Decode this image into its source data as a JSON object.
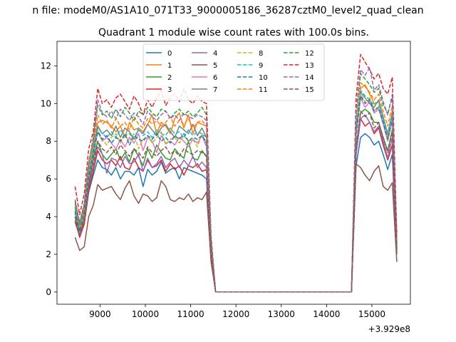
{
  "chart_data": {
    "type": "line",
    "suptitle": "n file: modeM0/AS1A10_071T33_9000005186_36287cztM0_level2_quad_clean",
    "title": "Quadrant 1 module wise count rates with 100.0s bins.",
    "xlabel": "",
    "ylabel": "",
    "x_offset_label": "+3.929e8",
    "xlim": [
      8050,
      15850
    ],
    "ylim": [
      -0.65,
      13.3
    ],
    "grid": false,
    "legend_position": "top-center",
    "xticks": [
      "9000",
      "10000",
      "11000",
      "12000",
      "13000",
      "14000",
      "15000"
    ],
    "yticks": [
      "0",
      "2",
      "4",
      "6",
      "8",
      "10",
      "12"
    ],
    "x": [
      8450,
      8550,
      8650,
      8750,
      8850,
      8950,
      9050,
      9150,
      9250,
      9350,
      9450,
      9550,
      9650,
      9750,
      9850,
      9950,
      10050,
      10150,
      10250,
      10350,
      10450,
      10550,
      10650,
      10750,
      10850,
      10950,
      11050,
      11150,
      11250,
      11350,
      11450,
      11550,
      11650,
      14550,
      14650,
      14750,
      14850,
      14950,
      15050,
      15150,
      15250,
      15350,
      15450,
      15550
    ],
    "series": [
      {
        "name": "0",
        "color": "#1f77b4",
        "dash": false,
        "values": [
          3.7,
          3.0,
          3.6,
          5.3,
          6.2,
          7.0,
          6.6,
          6.5,
          6.2,
          6.6,
          6.0,
          6.4,
          6.4,
          6.2,
          6.6,
          5.6,
          6.5,
          6.2,
          6.4,
          6.9,
          6.3,
          6.5,
          6.6,
          6.0,
          6.6,
          6.5,
          6.4,
          6.3,
          6.2,
          6.0,
          2.0,
          0,
          0,
          0,
          6.7,
          8.2,
          8.4,
          8.2,
          7.8,
          8.0,
          7.3,
          6.5,
          7.3,
          2.0
        ]
      },
      {
        "name": "1",
        "color": "#ff7f0e",
        "dash": false,
        "values": [
          4.6,
          3.3,
          4.4,
          6.4,
          7.7,
          9.0,
          9.1,
          9.0,
          8.8,
          8.5,
          8.8,
          8.2,
          9.0,
          8.6,
          8.7,
          8.5,
          8.9,
          9.4,
          8.4,
          9.0,
          8.8,
          8.4,
          9.2,
          9.5,
          8.7,
          9.4,
          8.4,
          9.0,
          8.9,
          8.8,
          2.6,
          0,
          0,
          0,
          8.4,
          10.8,
          11.0,
          10.5,
          10.0,
          10.1,
          9.2,
          8.3,
          9.6,
          2.6
        ]
      },
      {
        "name": "2",
        "color": "#2ca02c",
        "dash": false,
        "values": [
          4.2,
          3.1,
          4.0,
          5.8,
          7.1,
          8.0,
          7.3,
          7.0,
          7.3,
          7.6,
          7.0,
          7.4,
          6.9,
          7.6,
          7.2,
          6.7,
          7.6,
          7.1,
          7.8,
          7.4,
          7.1,
          7.0,
          7.6,
          7.3,
          7.1,
          8.0,
          7.1,
          7.0,
          7.5,
          7.2,
          2.3,
          0,
          0,
          0,
          7.6,
          9.5,
          9.7,
          9.5,
          9.0,
          9.0,
          8.2,
          7.5,
          8.6,
          2.3
        ]
      },
      {
        "name": "3",
        "color": "#d62728",
        "dash": false,
        "values": [
          3.8,
          2.9,
          3.6,
          5.4,
          6.4,
          7.5,
          7.0,
          6.8,
          7.0,
          6.7,
          7.2,
          6.6,
          6.5,
          7.1,
          6.6,
          6.4,
          7.0,
          6.6,
          6.7,
          7.0,
          6.4,
          6.8,
          6.5,
          6.7,
          6.2,
          6.7,
          6.6,
          6.8,
          6.4,
          6.5,
          2.1,
          0,
          0,
          0,
          7.3,
          9.2,
          8.8,
          9.0,
          8.4,
          8.7,
          7.8,
          7.0,
          7.8,
          2.1
        ]
      },
      {
        "name": "4",
        "color": "#9467bd",
        "dash": false,
        "values": [
          4.0,
          3.0,
          3.8,
          5.6,
          6.7,
          7.7,
          7.3,
          6.3,
          7.1,
          7.0,
          6.6,
          7.2,
          6.8,
          6.9,
          7.3,
          6.4,
          7.1,
          6.6,
          6.8,
          7.2,
          6.6,
          6.9,
          7.1,
          6.6,
          7.0,
          6.7,
          7.2,
          6.6,
          6.9,
          6.6,
          2.2,
          0,
          0,
          0,
          7.3,
          9.2,
          9.4,
          9.0,
          8.5,
          8.8,
          8.0,
          7.1,
          8.2,
          2.2
        ]
      },
      {
        "name": "5",
        "color": "#8c564b",
        "dash": false,
        "values": [
          2.9,
          2.2,
          2.4,
          4.0,
          4.6,
          5.7,
          5.4,
          5.5,
          5.6,
          5.2,
          4.9,
          5.5,
          5.9,
          5.1,
          4.7,
          5.2,
          5.1,
          4.8,
          5.0,
          5.9,
          5.6,
          4.9,
          4.8,
          5.0,
          4.9,
          5.2,
          4.8,
          5.0,
          4.9,
          5.3,
          1.6,
          0,
          0,
          0,
          6.8,
          6.6,
          6.2,
          5.9,
          6.4,
          6.7,
          5.6,
          5.4,
          5.8,
          1.6
        ]
      },
      {
        "name": "6",
        "color": "#e377c2",
        "dash": false,
        "values": [
          4.3,
          3.2,
          4.1,
          6.0,
          7.3,
          8.5,
          8.0,
          8.2,
          7.9,
          7.6,
          8.1,
          7.7,
          8.2,
          7.9,
          8.4,
          7.5,
          8.2,
          8.0,
          7.4,
          8.3,
          7.9,
          8.0,
          7.8,
          8.2,
          8.0,
          7.7,
          8.1,
          7.9,
          8.3,
          7.7,
          2.4,
          0,
          0,
          0,
          8.3,
          10.3,
          9.8,
          10.1,
          9.5,
          9.7,
          8.9,
          8.0,
          9.1,
          2.4
        ]
      },
      {
        "name": "7",
        "color": "#7f7f7f",
        "dash": false,
        "values": [
          4.5,
          3.3,
          4.3,
          6.3,
          7.6,
          8.8,
          8.4,
          8.6,
          8.3,
          8.8,
          8.2,
          8.7,
          8.5,
          8.1,
          8.6,
          8.4,
          8.9,
          8.6,
          8.3,
          8.7,
          8.9,
          8.5,
          8.2,
          8.8,
          8.6,
          8.4,
          8.9,
          8.3,
          8.7,
          8.2,
          2.5,
          0,
          0,
          0,
          8.7,
          10.6,
          10.3,
          10.0,
          9.8,
          10.2,
          9.3,
          8.4,
          9.5,
          2.5
        ]
      },
      {
        "name": "8",
        "color": "#bcbd22",
        "dash": true,
        "values": [
          4.4,
          3.2,
          4.2,
          6.2,
          7.4,
          8.6,
          8.1,
          7.8,
          8.2,
          8.4,
          7.9,
          8.3,
          8.0,
          8.4,
          7.6,
          8.1,
          8.3,
          7.9,
          8.2,
          8.5,
          7.8,
          8.1,
          8.2,
          7.9,
          8.3,
          8.0,
          8.1,
          7.7,
          8.4,
          7.9,
          2.4,
          0,
          0,
          0,
          8.5,
          10.5,
          10.1,
          10.3,
          9.6,
          9.9,
          9.1,
          8.2,
          9.3,
          2.4
        ]
      },
      {
        "name": "9",
        "color": "#17becf",
        "dash": true,
        "values": [
          4.5,
          3.3,
          4.3,
          6.3,
          7.5,
          8.7,
          8.4,
          8.2,
          8.5,
          8.2,
          8.6,
          8.3,
          8.4,
          8.1,
          8.7,
          8.3,
          8.5,
          8.2,
          8.6,
          8.4,
          8.3,
          8.7,
          8.4,
          8.5,
          8.2,
          8.6,
          8.3,
          8.5,
          8.4,
          8.2,
          2.5,
          0,
          0,
          0,
          8.6,
          10.7,
          10.4,
          10.2,
          9.9,
          10.1,
          9.2,
          8.4,
          9.4,
          2.5
        ]
      },
      {
        "name": "10",
        "color": "#1f77b4",
        "dash": true,
        "values": [
          4.3,
          3.2,
          4.2,
          6.1,
          7.3,
          8.5,
          8.1,
          8.3,
          7.9,
          8.2,
          8.0,
          8.4,
          7.8,
          8.3,
          8.1,
          8.0,
          8.3,
          8.1,
          8.4,
          8.0,
          8.2,
          7.9,
          8.3,
          8.1,
          8.4,
          8.0,
          8.2,
          8.1,
          8.3,
          7.9,
          2.4,
          0,
          0,
          0,
          8.4,
          10.4,
          10.0,
          10.2,
          9.6,
          9.8,
          9.0,
          8.1,
          9.2,
          2.4
        ]
      },
      {
        "name": "11",
        "color": "#ff7f0e",
        "dash": true,
        "values": [
          4.7,
          3.5,
          4.5,
          6.6,
          7.9,
          9.4,
          8.9,
          9.1,
          8.7,
          9.2,
          8.8,
          9.0,
          8.6,
          9.3,
          8.9,
          8.7,
          9.2,
          8.9,
          9.1,
          8.8,
          9.0,
          9.3,
          8.8,
          9.1,
          8.9,
          9.2,
          8.7,
          9.0,
          9.1,
          8.8,
          2.7,
          0,
          0,
          0,
          9.0,
          11.1,
          10.9,
          10.6,
          10.2,
          10.5,
          9.6,
          8.8,
          9.9,
          2.7
        ]
      },
      {
        "name": "12",
        "color": "#2ca02c",
        "dash": true,
        "values": [
          4.8,
          3.6,
          4.6,
          6.8,
          8.2,
          9.9,
          9.4,
          9.6,
          9.2,
          9.7,
          9.3,
          9.8,
          9.5,
          9.1,
          9.6,
          9.4,
          9.8,
          9.5,
          9.3,
          9.7,
          9.6,
          9.2,
          9.5,
          9.7,
          9.4,
          9.6,
          9.3,
          9.5,
          9.8,
          9.4,
          2.9,
          0,
          0,
          0,
          9.4,
          11.6,
          11.3,
          11.0,
          10.6,
          10.8,
          9.9,
          9.5,
          10.3,
          2.9
        ]
      },
      {
        "name": "13",
        "color": "#d62728",
        "dash": true,
        "values": [
          5.6,
          4.1,
          5.2,
          7.6,
          8.5,
          10.8,
          10.0,
          10.2,
          9.8,
          10.3,
          10.5,
          10.1,
          9.7,
          10.4,
          10.0,
          9.4,
          10.2,
          9.8,
          10.3,
          10.7,
          9.9,
          10.3,
          10.5,
          10.1,
          10.8,
          10.2,
          10.0,
          10.4,
          10.1,
          10.0,
          3.0,
          0,
          0,
          0,
          10.3,
          12.6,
          12.2,
          11.8,
          11.3,
          11.6,
          10.8,
          10.5,
          11.4,
          3.0
        ]
      },
      {
        "name": "14",
        "color": "#9467bd",
        "dash": true,
        "values": [
          4.9,
          3.7,
          4.7,
          6.9,
          8.0,
          10.2,
          9.5,
          9.3,
          9.6,
          9.2,
          9.7,
          9.4,
          9.1,
          9.5,
          9.3,
          8.9,
          9.6,
          9.3,
          9.1,
          9.4,
          9.6,
          9.2,
          9.4,
          9.1,
          9.5,
          9.3,
          9.2,
          9.4,
          9.3,
          9.1,
          2.8,
          0,
          0,
          0,
          9.6,
          11.8,
          11.5,
          11.9,
          10.7,
          11.0,
          10.1,
          9.4,
          10.5,
          2.8
        ]
      },
      {
        "name": "15",
        "color": "#8c564b",
        "dash": true,
        "values": [
          4.0,
          3.0,
          3.8,
          5.7,
          6.8,
          8.0,
          7.6,
          7.4,
          7.7,
          7.3,
          7.8,
          7.5,
          7.2,
          7.6,
          7.4,
          7.1,
          7.7,
          7.4,
          7.2,
          7.5,
          7.7,
          7.3,
          7.5,
          7.2,
          7.6,
          7.4,
          7.3,
          7.5,
          7.4,
          7.2,
          2.2,
          0,
          0,
          0,
          7.7,
          9.6,
          9.3,
          9.5,
          8.7,
          9.0,
          8.2,
          7.4,
          8.5,
          2.2
        ]
      }
    ]
  }
}
